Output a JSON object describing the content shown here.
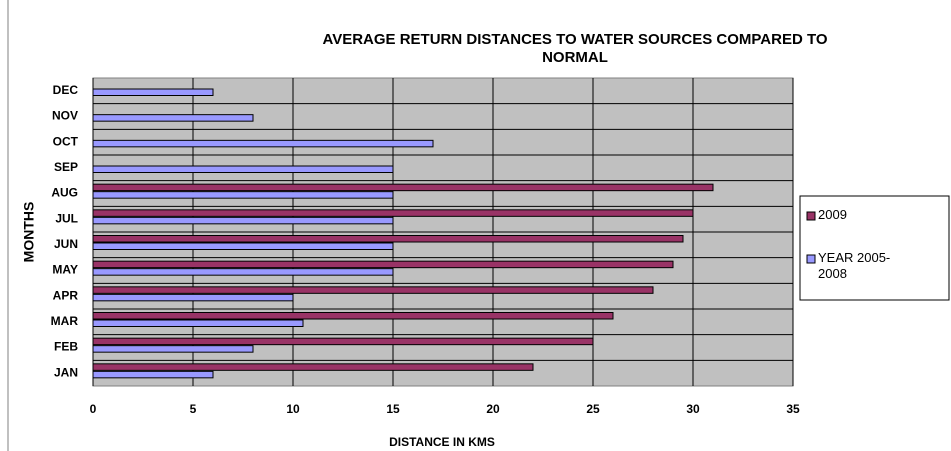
{
  "chart_data": {
    "type": "barh",
    "title": "AVERAGE RETURN DISTANCES TO WATER SOURCES COMPARED TO NORMAL",
    "x_label": "DISTANCE IN KMS",
    "y_label": "MONTHS",
    "categories": [
      "JAN",
      "FEB",
      "MAR",
      "APR",
      "MAY",
      "JUN",
      "JUL",
      "AUG",
      "SEP",
      "OCT",
      "NOV",
      "DEC"
    ],
    "series": [
      {
        "name": "2009",
        "color": "#993366",
        "values": [
          22,
          25,
          26,
          28,
          29,
          29.5,
          30,
          31,
          null,
          null,
          null,
          null
        ]
      },
      {
        "name": "YEAR 2005-2008",
        "color": "#9999ff",
        "values": [
          6,
          8,
          10.5,
          10,
          15,
          15,
          15,
          15,
          15,
          17,
          8,
          6
        ]
      }
    ],
    "xlim": [
      0,
      35
    ],
    "xticks": [
      0,
      5,
      10,
      15,
      20,
      25,
      30,
      35
    ],
    "grid": true,
    "legend": "right"
  }
}
